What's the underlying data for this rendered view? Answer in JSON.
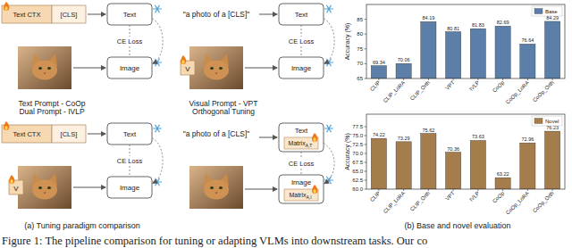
{
  "figure": {
    "caption": "Figure 1: The pipeline comparison for tuning or adapting VLMs into downstream tasks. Our co",
    "panel_a": {
      "caption": "(a) Tuning paradigm comparison",
      "panels": [
        {
          "title": "Text Prompt - CoOp",
          "text_tokens": [
            "Text CTX",
            "[CLS]"
          ],
          "text_encoder": "Text",
          "loss": "CE Loss",
          "image_encoder": "Image"
        },
        {
          "title": "Visual Prompt - VPT",
          "prompt_text": "\"a photo of a [CLS]\"",
          "image_token": "V",
          "text_encoder": "Text",
          "loss": "CE Loss",
          "image_encoder": "Image"
        },
        {
          "title": "Dual Prompt - IVLP",
          "text_tokens": [
            "Text CTX",
            "[CLS]"
          ],
          "image_token": "V",
          "text_encoder": "Text",
          "loss": "CE Loss",
          "image_encoder": "Image"
        },
        {
          "title": "Orthogonal Tuning",
          "prompt_text": "\"a photo of a [CLS]\"",
          "text_encoder": "Text",
          "text_matrix": {
            "label": "Matrix",
            "subscript": "A,T"
          },
          "loss": "CE Loss",
          "image_encoder": "Image",
          "image_matrix": {
            "label": "Matrix",
            "subscript": "A,I"
          }
        }
      ]
    },
    "panel_b": {
      "caption": "(b) Base and novel evaluation"
    }
  },
  "chart_data": [
    {
      "type": "bar",
      "categories": [
        "CLIP",
        "CLIP_LoRA",
        "CLIP_Orth",
        "VPT",
        "IVLP",
        "CoOp",
        "CoOp_LoRA",
        "CoOp_Orth"
      ],
      "series": [
        {
          "name": "Base",
          "color": "#5b7fa8",
          "values": [
            69.34,
            70.06,
            84.19,
            80.81,
            81.83,
            82.69,
            76.64,
            84.29
          ]
        }
      ],
      "ylabel": "Accuracy (%)",
      "ylim": [
        65,
        90
      ],
      "yticks": [
        65,
        70,
        75,
        80,
        85
      ],
      "legend": "upper right",
      "data_labels": true,
      "grid": false
    },
    {
      "type": "bar",
      "categories": [
        "CLIP",
        "CLIP_LoRA",
        "CLIP_Orth",
        "VPT",
        "IVLP",
        "CoOp",
        "CoOp_LoRA",
        "CoOp_Orth"
      ],
      "series": [
        {
          "name": "Novel",
          "color": "#a57c4c",
          "values": [
            74.22,
            73.29,
            75.62,
            70.36,
            73.63,
            63.22,
            72.96,
            76.23
          ]
        }
      ],
      "ylabel": "Accuracy (%)",
      "ylim": [
        60,
        81
      ],
      "yticks": [
        {
          "value": 60,
          "label": "60.0"
        },
        {
          "value": 62.5,
          "label": "62.5"
        },
        {
          "value": 65,
          "label": "65.0"
        },
        {
          "value": 67.5,
          "label": "67.5"
        },
        {
          "value": 70,
          "label": "70.0"
        },
        {
          "value": 72.5,
          "label": "72.5"
        },
        {
          "value": 75,
          "label": "75.0"
        },
        {
          "value": 77.5,
          "label": "77.5"
        }
      ],
      "legend": "upper right",
      "data_labels": true,
      "grid": false
    }
  ]
}
